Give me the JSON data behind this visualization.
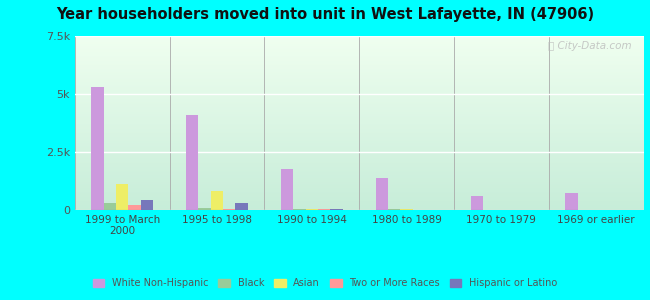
{
  "title": "Year householders moved into unit in West Lafayette, IN (47906)",
  "categories": [
    "1999 to March\n2000",
    "1995 to 1998",
    "1990 to 1994",
    "1980 to 1989",
    "1970 to 1979",
    "1969 or earlier"
  ],
  "series": {
    "White Non-Hispanic": [
      5300,
      4100,
      1750,
      1400,
      600,
      750
    ],
    "Black": [
      300,
      100,
      50,
      30,
      20,
      20
    ],
    "Asian": [
      1100,
      800,
      60,
      40,
      20,
      20
    ],
    "Two or More Races": [
      200,
      30,
      30,
      20,
      15,
      15
    ],
    "Hispanic or Latino": [
      420,
      320,
      30,
      20,
      15,
      15
    ]
  },
  "colors": {
    "White Non-Hispanic": "#cc99dd",
    "Black": "#99cc99",
    "Asian": "#eeee66",
    "Two or More Races": "#ff9999",
    "Hispanic or Latino": "#7777bb"
  },
  "ylim": [
    0,
    7500
  ],
  "yticks": [
    0,
    2500,
    5000,
    7500
  ],
  "ytick_labels": [
    "0",
    "2.5k",
    "5k",
    "7.5k"
  ],
  "outer_background": "#00ffff",
  "bar_width": 0.13,
  "watermark": "ⓘ City-Data.com",
  "grid_color": "#dddddd",
  "plot_bg_top": "#c8eed8",
  "plot_bg_bottom": "#eefff0"
}
